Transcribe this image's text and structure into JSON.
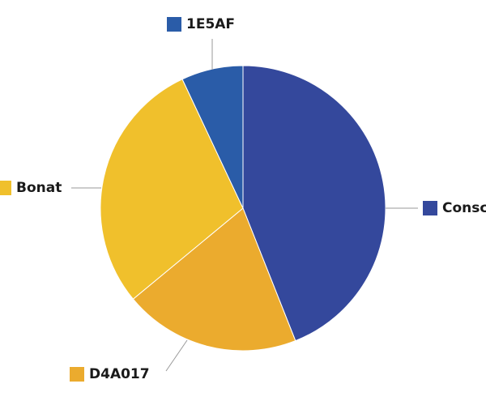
{
  "chart_data": {
    "type": "pie",
    "categories": [
      "Consc",
      "D4A017",
      "Bonat",
      "1E5AF"
    ],
    "values": [
      44,
      20,
      29,
      7
    ],
    "colors": [
      "#34489c",
      "#ebab2e",
      "#f0c02c",
      "#2a5ca8"
    ]
  }
}
